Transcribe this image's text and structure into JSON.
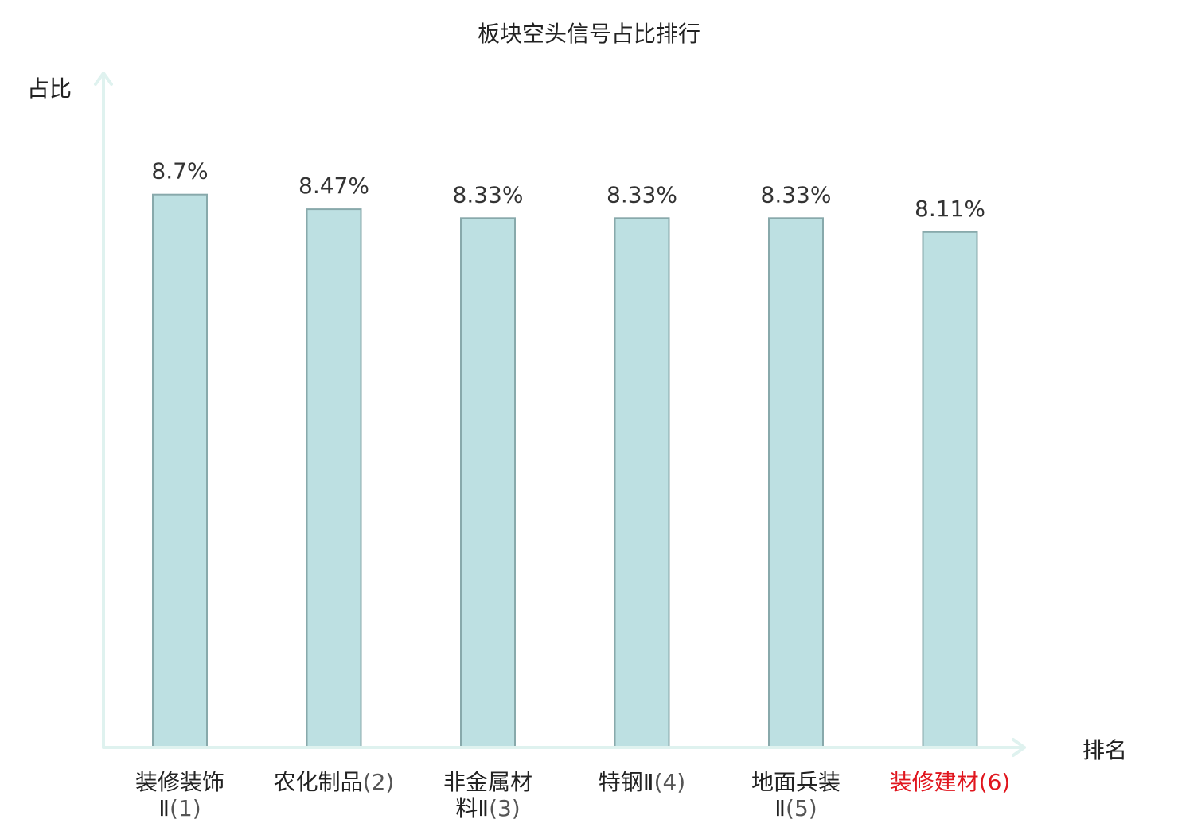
{
  "chart_data": {
    "type": "bar",
    "title": "板块空头信号占比排行",
    "ylabel": "占比",
    "xlabel": "排名",
    "value_suffix": "%",
    "ylim": [
      0,
      10
    ],
    "grid": false,
    "categories": [
      {
        "lines": [
          "装修装饰",
          "Ⅱ"
        ],
        "rank": "(1)",
        "highlight": false
      },
      {
        "lines": [
          "农化制品"
        ],
        "rank": "(2)",
        "highlight": false
      },
      {
        "lines": [
          "非金属材",
          "料Ⅱ"
        ],
        "rank": "(3)",
        "highlight": false
      },
      {
        "lines": [
          "特钢Ⅱ"
        ],
        "rank": "(4)",
        "highlight": false
      },
      {
        "lines": [
          "地面兵装",
          "Ⅱ"
        ],
        "rank": "(5)",
        "highlight": false
      },
      {
        "lines": [
          "装修建材"
        ],
        "rank": "(6)",
        "highlight": true
      }
    ],
    "values": [
      8.7,
      8.47,
      8.33,
      8.33,
      8.33,
      8.11
    ],
    "value_labels": [
      "8.7%",
      "8.47%",
      "8.33%",
      "8.33%",
      "8.33%",
      "8.11%"
    ],
    "colors": {
      "bar_fill": "#bde0e2",
      "bar_stroke": "#88a9ab",
      "axis": "#dff2ef",
      "highlight_text": "#e0161e"
    }
  }
}
